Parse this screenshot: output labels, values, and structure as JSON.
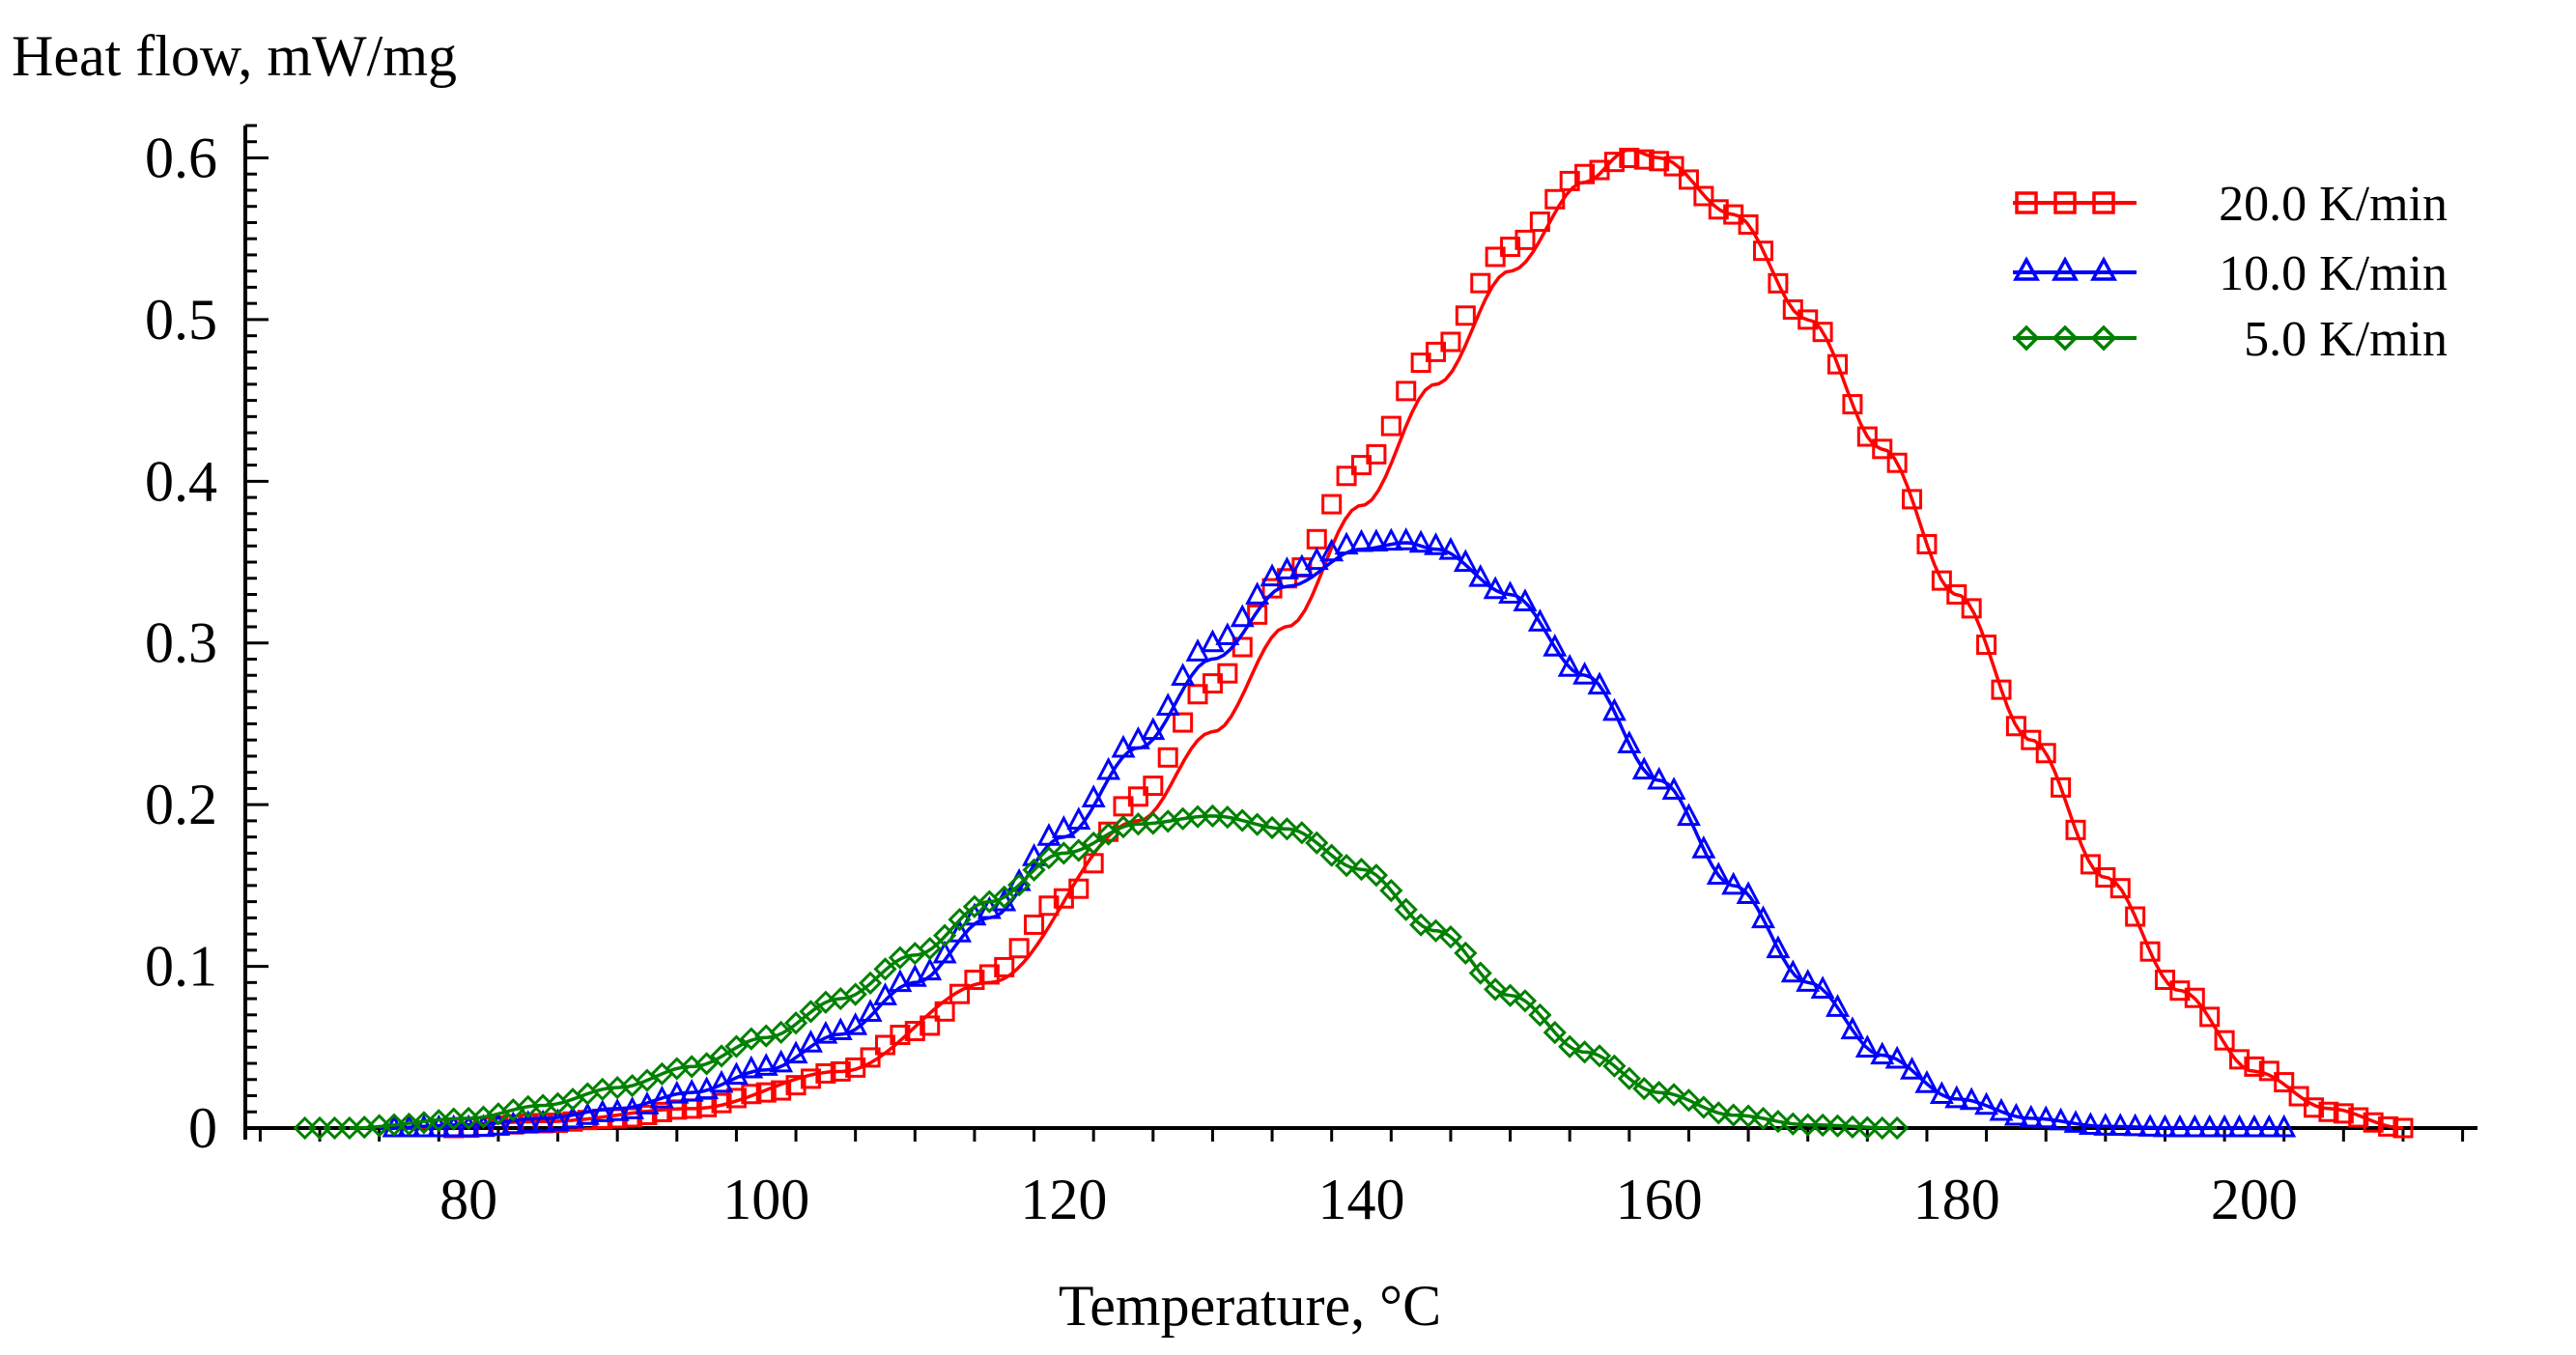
{
  "chart_data": {
    "type": "line",
    "title": "",
    "xlabel": "Temperature, °C",
    "ylabel": "Heat flow, mW/mg",
    "xlim": [
      65,
      215
    ],
    "ylim": [
      0,
      0.62
    ],
    "xticks": [
      80,
      100,
      120,
      140,
      160,
      180,
      200
    ],
    "yticks": [
      0,
      0.1,
      0.2,
      0.3,
      0.4,
      0.5,
      0.6
    ],
    "ytick_labels": [
      "0",
      "0.1",
      "0.2",
      "0.3",
      "0.4",
      "0.5",
      "0.6"
    ],
    "grid": false,
    "legend_position": "top-right",
    "series": [
      {
        "name": "20.0 K/min",
        "label": "20.0 K/min",
        "color": "#ff0000",
        "marker": "square",
        "x": [
          79,
          85,
          90,
          95,
          100,
          105,
          110,
          115,
          120,
          125,
          130,
          135,
          140,
          145,
          150,
          155,
          158,
          160,
          165,
          170,
          175,
          180,
          185,
          190,
          195,
          200,
          205,
          210
        ],
        "y": [
          0.0,
          0.003,
          0.006,
          0.012,
          0.022,
          0.035,
          0.06,
          0.095,
          0.142,
          0.205,
          0.275,
          0.34,
          0.41,
          0.48,
          0.545,
          0.59,
          0.6,
          0.598,
          0.565,
          0.5,
          0.42,
          0.33,
          0.24,
          0.155,
          0.085,
          0.038,
          0.01,
          0.0
        ],
        "fit_x": [
          75,
          85,
          95,
          105,
          115,
          125,
          130,
          135,
          140,
          145,
          150,
          155,
          158,
          160,
          165,
          170,
          175,
          180,
          185,
          190,
          195,
          200,
          205,
          210
        ],
        "fit_y": [
          0.0,
          0.004,
          0.012,
          0.035,
          0.09,
          0.19,
          0.245,
          0.31,
          0.385,
          0.46,
          0.53,
          0.585,
          0.605,
          0.6,
          0.565,
          0.5,
          0.42,
          0.33,
          0.24,
          0.155,
          0.085,
          0.035,
          0.012,
          0.0
        ]
      },
      {
        "name": "10.0 K/min",
        "label": "10.0 K/min",
        "color": "#0000ff",
        "marker": "triangle",
        "x": [
          75,
          80,
          85,
          90,
          95,
          100,
          105,
          110,
          115,
          120,
          125,
          130,
          135,
          140,
          143,
          145,
          150,
          155,
          160,
          165,
          170,
          175,
          180,
          185,
          190,
          195,
          200,
          202
        ],
        "y": [
          0.0,
          0.0,
          0.003,
          0.01,
          0.022,
          0.038,
          0.06,
          0.093,
          0.135,
          0.185,
          0.24,
          0.3,
          0.345,
          0.362,
          0.363,
          0.36,
          0.33,
          0.28,
          0.215,
          0.15,
          0.09,
          0.045,
          0.018,
          0.006,
          0.001,
          0.0,
          0.0,
          0.0
        ],
        "fit_x": [
          74,
          80,
          85,
          90,
          95,
          100,
          105,
          110,
          115,
          120,
          125,
          130,
          135,
          140,
          143,
          145,
          150,
          155,
          160,
          165,
          170,
          175,
          180,
          185,
          190,
          195,
          202
        ],
        "fit_y": [
          0.0,
          0.002,
          0.006,
          0.012,
          0.022,
          0.036,
          0.058,
          0.09,
          0.13,
          0.18,
          0.235,
          0.29,
          0.335,
          0.358,
          0.362,
          0.358,
          0.33,
          0.28,
          0.215,
          0.15,
          0.09,
          0.045,
          0.018,
          0.006,
          0.001,
          0.0,
          0.0
        ]
      },
      {
        "name": "5.0 K/min",
        "label": "5.0 K/min",
        "color": "#008000",
        "marker": "diamond",
        "x": [
          69,
          72,
          75,
          80,
          85,
          90,
          95,
          100,
          105,
          110,
          115,
          120,
          125,
          130,
          135,
          140,
          145,
          150,
          155,
          160,
          165,
          170,
          175,
          176
        ],
        "y": [
          0.0,
          0.0,
          0.002,
          0.006,
          0.014,
          0.025,
          0.038,
          0.057,
          0.08,
          0.108,
          0.14,
          0.17,
          0.188,
          0.193,
          0.185,
          0.16,
          0.122,
          0.082,
          0.047,
          0.022,
          0.008,
          0.002,
          0.0,
          0.0
        ],
        "fit_x": [
          72,
          80,
          85,
          90,
          95,
          100,
          105,
          110,
          115,
          120,
          125,
          130,
          135,
          140,
          145,
          150,
          155,
          160,
          165,
          170,
          176
        ],
        "fit_y": [
          0.0,
          0.006,
          0.014,
          0.025,
          0.038,
          0.056,
          0.08,
          0.107,
          0.14,
          0.17,
          0.188,
          0.193,
          0.185,
          0.16,
          0.122,
          0.082,
          0.047,
          0.022,
          0.008,
          0.002,
          0.0
        ]
      }
    ]
  }
}
